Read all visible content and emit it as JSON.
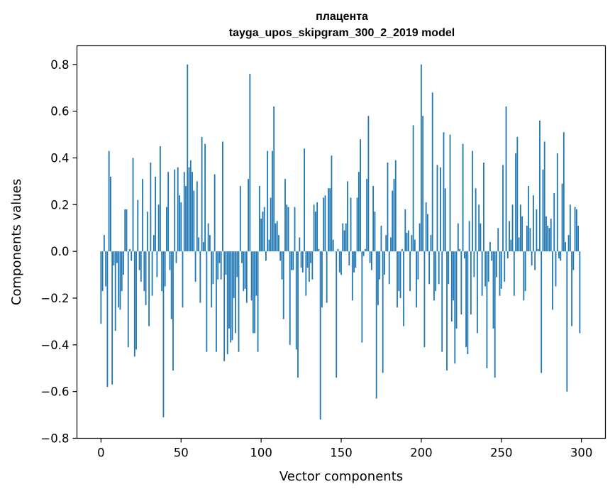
{
  "chart_data": {
    "type": "bar",
    "title_line1": "плацента",
    "title_line2": "tayga_upos_skipgram_300_2_2019 model",
    "xlabel": "Vector components",
    "ylabel": "Components values",
    "xlim": [
      -15,
      315
    ],
    "ylim": [
      -0.8,
      0.88
    ],
    "x_ticks": [
      0,
      50,
      100,
      150,
      200,
      250,
      300
    ],
    "x_tick_labels": [
      "0",
      "50",
      "100",
      "150",
      "200",
      "250",
      "300"
    ],
    "y_ticks": [
      -0.8,
      -0.6,
      -0.4,
      -0.2,
      0.0,
      0.2,
      0.4,
      0.6,
      0.8
    ],
    "y_tick_labels": [
      "−0.8",
      "−0.6",
      "−0.4",
      "−0.2",
      "0.0",
      "0.2",
      "0.4",
      "0.6",
      "0.8"
    ],
    "bar_color": "#1f77b4",
    "values": [
      -0.31,
      -0.17,
      0.07,
      -0.15,
      -0.58,
      0.43,
      0.32,
      -0.57,
      -0.06,
      -0.34,
      -0.05,
      -0.24,
      -0.25,
      -0.17,
      -0.1,
      0.18,
      0.18,
      -0.41,
      0.01,
      -0.04,
      0.4,
      -0.45,
      -0.42,
      0.22,
      -0.08,
      -0.13,
      0.31,
      -0.17,
      -0.23,
      0.17,
      -0.32,
      0.38,
      -0.19,
      0.07,
      0.32,
      -0.11,
      0.2,
      0.45,
      -0.17,
      -0.71,
      -0.15,
      0.19,
      0.34,
      -0.08,
      -0.29,
      -0.51,
      0.35,
      -0.05,
      0.36,
      0.24,
      0.21,
      -0.24,
      0.34,
      0.28,
      0.8,
      0.36,
      0.39,
      0.34,
      0.26,
      -0.13,
      0.3,
      0.06,
      -0.22,
      0.49,
      0.04,
      0.46,
      -0.43,
      0.12,
      0.07,
      -0.24,
      -0.14,
      0.33,
      -0.43,
      -0.12,
      -0.05,
      -0.12,
      0.47,
      -0.47,
      -0.1,
      -0.44,
      -0.33,
      -0.39,
      -0.38,
      -0.2,
      -0.35,
      -0.11,
      -0.43,
      0.28,
      -0.05,
      -0.17,
      -0.16,
      -0.22,
      0.31,
      0.76,
      -0.21,
      -0.35,
      -0.35,
      -0.19,
      -0.43,
      0.28,
      0.14,
      0.17,
      0.19,
      -0.04,
      0.43,
      0.05,
      0.23,
      0.43,
      0.62,
      0.12,
      0.13,
      0.07,
      -0.04,
      -0.12,
      -0.29,
      0.31,
      0.2,
      0.19,
      -0.4,
      -0.08,
      -0.08,
      0.19,
      -0.42,
      -0.54,
      0.06,
      -0.07,
      -0.09,
      0.44,
      -0.19,
      -0.07,
      -0.13,
      -0.05,
      -0.12,
      0.2,
      0.17,
      0.21,
      0.01,
      -0.72,
      -0.24,
      0.23,
      0.24,
      -0.22,
      0.27,
      0.27,
      0.41,
      0.05,
      0.0,
      -0.54,
      0.01,
      -0.09,
      -0.1,
      0.12,
      0.09,
      0.12,
      0.3,
      -0.06,
      0.23,
      -0.21,
      -0.09,
      -0.07,
      0.23,
      0.34,
      0.48,
      -0.39,
      -0.02,
      0.01,
      0.31,
      0.58,
      -0.05,
      -0.08,
      0.28,
      0.17,
      -0.63,
      -0.23,
      -0.12,
      0.11,
      -0.52,
      -0.1,
      0.07,
      0.38,
      -0.14,
      0.06,
      0.26,
      0.31,
      0.39,
      -0.24,
      -0.17,
      -0.2,
      0.01,
      -0.32,
      0.18,
      0.08,
      0.09,
      -0.17,
      0.07,
      0.54,
      0.05,
      -0.24,
      -0.12,
      0.12,
      0.8,
      0.58,
      -0.41,
      0.21,
      0.16,
      -0.14,
      0.07,
      0.68,
      -0.21,
      -0.17,
      0.37,
      -0.14,
      0.36,
      -0.43,
      0.51,
      0.27,
      -0.51,
      -0.14,
      0.5,
      -0.3,
      -0.21,
      -0.48,
      -0.33,
      0.12,
      0.01,
      -0.27,
      0.46,
      -0.03,
      -0.41,
      -0.44,
      0.13,
      -0.27,
      0.43,
      -0.11,
      0.27,
      -0.35,
      0.2,
      0.12,
      -0.19,
      0.38,
      -0.15,
      -0.5,
      -0.13,
      0.04,
      -0.04,
      -0.33,
      -0.54,
      -0.11,
      0.1,
      -0.19,
      -0.16,
      0.37,
      -0.13,
      0.62,
      -0.03,
      0.13,
      0.05,
      0.2,
      -0.19,
      0.42,
      0.49,
      0.06,
      0.2,
      0.15,
      -0.21,
      -0.17,
      0.11,
      0.28,
      0.1,
      -0.06,
      0.24,
      -0.08,
      0.18,
      0.01,
      0.56,
      -0.52,
      0.35,
      0.47,
      0.15,
      0.11,
      0.1,
      0.14,
      -0.25,
      0.25,
      -0.15,
      0.42,
      -0.03,
      -0.04,
      0.29,
      0.51,
      0.04,
      -0.6,
      0.07,
      0.2,
      -0.32,
      -0.08,
      0.19,
      0.18,
      0.11,
      -0.35
    ]
  }
}
